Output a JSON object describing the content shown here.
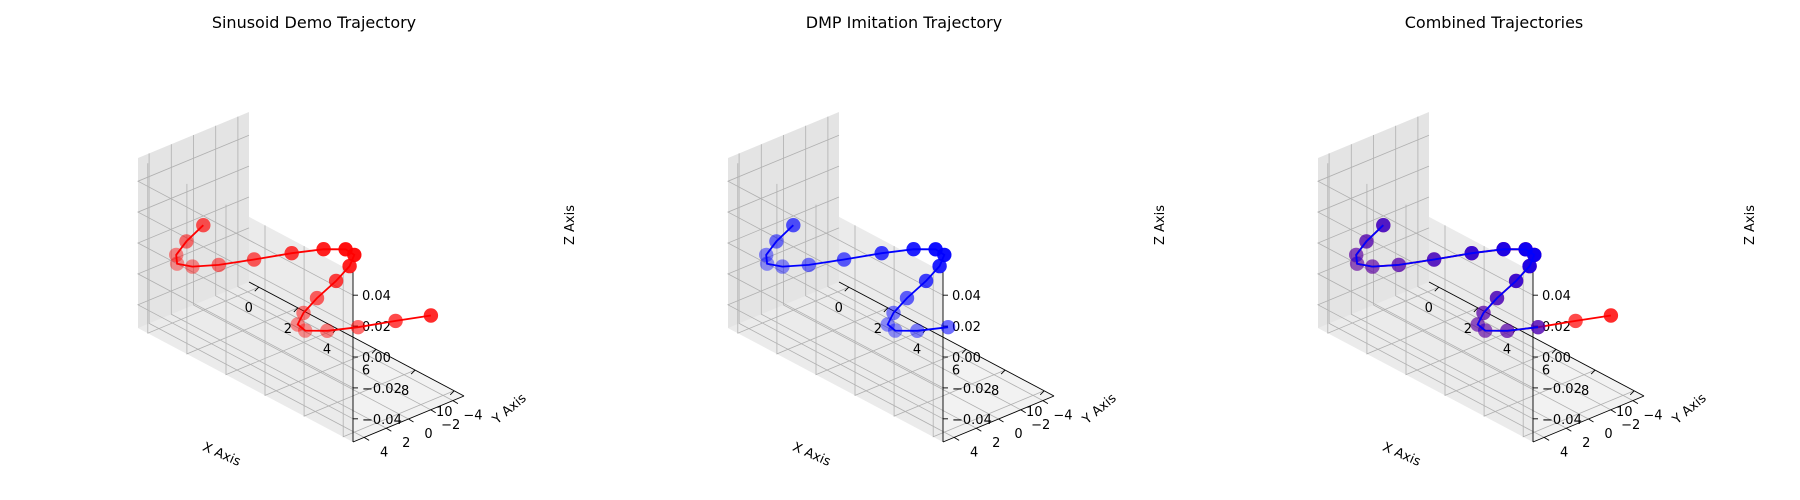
{
  "chart_data": [
    {
      "type": "scatter3d",
      "title": "Sinusoid Demo Trajectory",
      "xlabel": "X Axis",
      "ylabel": "Y Axis",
      "zlabel": "Z Axis",
      "xlim": [
        -0.5,
        10.5
      ],
      "ylim": [
        -5,
        5
      ],
      "zlim": [
        -0.055,
        0.055
      ],
      "xticks": [
        "0",
        "2",
        "4",
        "6",
        "8",
        "10"
      ],
      "yticks": [
        "−4",
        "−2",
        "0",
        "2",
        "4"
      ],
      "zticks": [
        "−0.04",
        "−0.02",
        "0.00",
        "0.02",
        "0.04"
      ],
      "grid": true,
      "series": [
        {
          "color": "#ff0000",
          "x": [
            0,
            0.5,
            1,
            1.5,
            2,
            2.5,
            3,
            3.5,
            4,
            4.5,
            5,
            5.5,
            6,
            6.5,
            7,
            7.5,
            8,
            8.5,
            9,
            9.5,
            10
          ],
          "y": [
            0,
            2.4,
            4.2,
            5,
            4.5,
            3,
            0.7,
            -1.8,
            -3.8,
            -4.9,
            -4.8,
            -3.5,
            -1.4,
            1.2,
            3.3,
            4.7,
            4.9,
            3.8,
            1.9,
            -0.6,
            -2.9
          ],
          "z": [
            0,
            0,
            0,
            0,
            0,
            0,
            0,
            0,
            0,
            0,
            0,
            0,
            0,
            0,
            0,
            0,
            0,
            0,
            0,
            0,
            0
          ]
        }
      ]
    },
    {
      "type": "scatter3d",
      "title": "DMP Imitation Trajectory",
      "xlabel": "X Axis",
      "ylabel": "Y Axis",
      "zlabel": "Z Axis",
      "xlim": [
        -0.5,
        10.5
      ],
      "ylim": [
        -5,
        5
      ],
      "zlim": [
        -0.055,
        0.055
      ],
      "xticks": [
        "0",
        "2",
        "4",
        "6",
        "8",
        "10"
      ],
      "yticks": [
        "−4",
        "−2",
        "0",
        "2",
        "4"
      ],
      "zticks": [
        "−0.04",
        "−0.02",
        "0.00",
        "0.02",
        "0.04"
      ],
      "grid": true,
      "series": [
        {
          "color": "#0000ff",
          "x": [
            0,
            0.5,
            1,
            1.5,
            2,
            2.5,
            3,
            3.5,
            4,
            4.5,
            5,
            5.5,
            6,
            6.5,
            7,
            7.5,
            8,
            8.5,
            9
          ],
          "y": [
            0,
            2.4,
            4.2,
            5,
            4.5,
            3,
            0.7,
            -1.8,
            -3.8,
            -4.9,
            -4.8,
            -3.5,
            -1.4,
            1.2,
            3.3,
            4.7,
            4.9,
            3.8,
            1.9
          ],
          "z": [
            0,
            0,
            0,
            0,
            0,
            0,
            0,
            0,
            0,
            0,
            0,
            0,
            0,
            0,
            0,
            0,
            0,
            0,
            0
          ]
        }
      ]
    },
    {
      "type": "scatter3d",
      "title": "Combined Trajectories",
      "xlabel": "X Axis",
      "ylabel": "Y Axis",
      "zlabel": "Z Axis",
      "xlim": [
        -0.5,
        10.5
      ],
      "ylim": [
        -5,
        5
      ],
      "zlim": [
        -0.055,
        0.055
      ],
      "xticks": [
        "0",
        "2",
        "4",
        "6",
        "8",
        "10"
      ],
      "yticks": [
        "−4",
        "−2",
        "0",
        "2",
        "4"
      ],
      "zticks": [
        "−0.04",
        "−0.02",
        "0.00",
        "0.02",
        "0.04"
      ],
      "grid": true,
      "series": [
        {
          "color": "#ff0000",
          "x": [
            0,
            0.5,
            1,
            1.5,
            2,
            2.5,
            3,
            3.5,
            4,
            4.5,
            5,
            5.5,
            6,
            6.5,
            7,
            7.5,
            8,
            8.5,
            9,
            9.5,
            10
          ],
          "y": [
            0,
            2.4,
            4.2,
            5,
            4.5,
            3,
            0.7,
            -1.8,
            -3.8,
            -4.9,
            -4.8,
            -3.5,
            -1.4,
            1.2,
            3.3,
            4.7,
            4.9,
            3.8,
            1.9,
            -0.6,
            -2.9
          ],
          "z": [
            0,
            0,
            0,
            0,
            0,
            0,
            0,
            0,
            0,
            0,
            0,
            0,
            0,
            0,
            0,
            0,
            0,
            0,
            0,
            0,
            0
          ]
        },
        {
          "color": "#0000ff",
          "x": [
            0,
            0.5,
            1,
            1.5,
            2,
            2.5,
            3,
            3.5,
            4,
            4.5,
            5,
            5.5,
            6,
            6.5,
            7,
            7.5,
            8,
            8.5,
            9
          ],
          "y": [
            0,
            2.4,
            4.2,
            5,
            4.5,
            3,
            0.7,
            -1.8,
            -3.8,
            -4.9,
            -4.8,
            -3.5,
            -1.4,
            1.2,
            3.3,
            4.7,
            4.9,
            3.8,
            1.9
          ],
          "z": [
            0,
            0,
            0,
            0,
            0,
            0,
            0,
            0,
            0,
            0,
            0,
            0,
            0,
            0,
            0,
            0,
            0,
            0,
            0
          ]
        }
      ]
    }
  ]
}
